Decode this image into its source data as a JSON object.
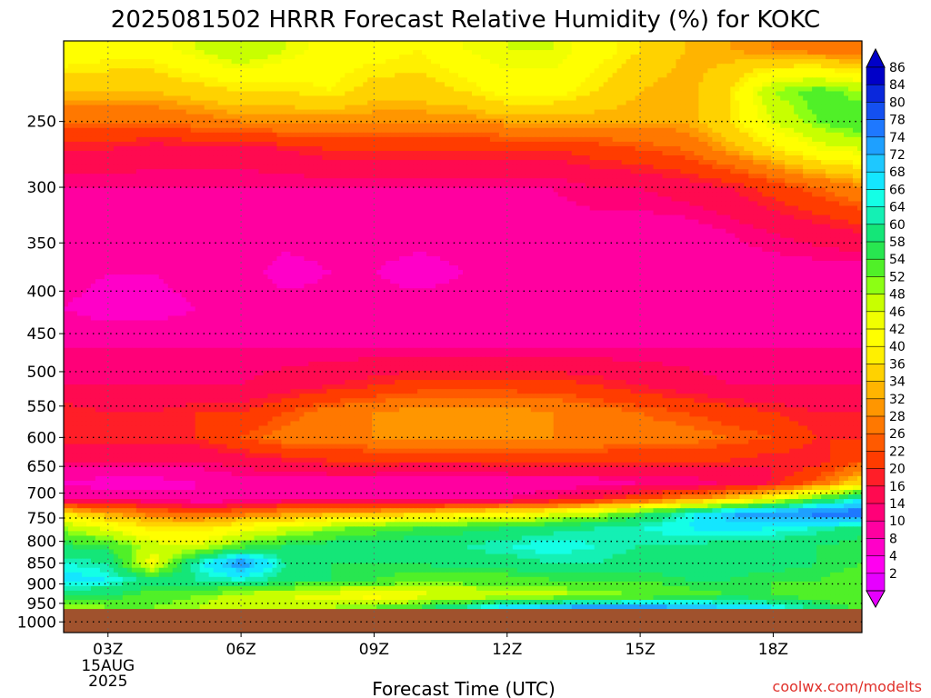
{
  "chart_data": {
    "type": "heatmap",
    "title": "2025081502 HRRR Forecast Relative Humidity (%) for KOKC",
    "xlabel": "Forecast Time (UTC)",
    "ylabel": "",
    "x_ticks": [
      "03Z",
      "06Z",
      "09Z",
      "12Z",
      "15Z",
      "18Z"
    ],
    "x_tick_values": [
      3,
      6,
      9,
      12,
      15,
      18
    ],
    "x_first_sub": [
      "15AUG",
      "2025"
    ],
    "xlim": [
      2,
      20
    ],
    "y_ticks": [
      250,
      300,
      350,
      400,
      450,
      500,
      550,
      600,
      650,
      700,
      750,
      800,
      850,
      900,
      950,
      1000
    ],
    "ylim": [
      200,
      1030
    ],
    "y_scale": "log-pressure",
    "grid": true,
    "ground_pressure": 965,
    "colorbar_labels": [
      86,
      84,
      80,
      78,
      74,
      72,
      68,
      66,
      64,
      60,
      58,
      54,
      52,
      48,
      46,
      42,
      40,
      36,
      34,
      32,
      28,
      26,
      22,
      20,
      16,
      14,
      10,
      8,
      4,
      2
    ],
    "colorbar_colors": [
      "#0000c8",
      "#0a28dc",
      "#1450f0",
      "#1e78ff",
      "#1ea0ff",
      "#1ec8ff",
      "#14e6ff",
      "#14ffe6",
      "#14f0b4",
      "#14e678",
      "#28e650",
      "#50f028",
      "#8cff14",
      "#c8ff00",
      "#f0ff00",
      "#ffff00",
      "#fff000",
      "#ffd200",
      "#ffb400",
      "#ff9600",
      "#ff7800",
      "#ff5a00",
      "#ff3c00",
      "#ff1e28",
      "#ff0a50",
      "#ff0078",
      "#ff00a0",
      "#ff00c8",
      "#ff00f0",
      "#e600ff"
    ],
    "series_levels": [
      {
        "p": 205,
        "values": [
          46,
          44,
          44,
          48,
          52,
          48,
          44,
          44,
          42,
          46,
          48,
          48,
          44,
          40,
          36,
          34,
          32,
          30,
          28
        ]
      },
      {
        "p": 230,
        "values": [
          36,
          36,
          36,
          38,
          40,
          40,
          42,
          38,
          38,
          40,
          44,
          44,
          40,
          36,
          34,
          40,
          52,
          56,
          52
        ]
      },
      {
        "p": 250,
        "values": [
          28,
          28,
          28,
          30,
          32,
          32,
          32,
          32,
          32,
          32,
          34,
          34,
          34,
          34,
          34,
          40,
          48,
          54,
          58
        ]
      },
      {
        "p": 270,
        "values": [
          20,
          20,
          18,
          18,
          18,
          20,
          22,
          22,
          22,
          22,
          22,
          22,
          24,
          26,
          28,
          34,
          40,
          46,
          48
        ]
      },
      {
        "p": 300,
        "values": [
          14,
          14,
          14,
          14,
          14,
          14,
          14,
          14,
          14,
          14,
          14,
          14,
          16,
          16,
          18,
          20,
          24,
          28,
          32
        ]
      },
      {
        "p": 340,
        "values": [
          12,
          12,
          12,
          12,
          12,
          12,
          12,
          12,
          12,
          12,
          12,
          12,
          12,
          12,
          12,
          14,
          16,
          18,
          20
        ]
      },
      {
        "p": 380,
        "values": [
          12,
          10,
          10,
          12,
          12,
          8,
          10,
          10,
          8,
          10,
          10,
          10,
          10,
          10,
          12,
          12,
          12,
          12,
          12
        ]
      },
      {
        "p": 420,
        "values": [
          10,
          8,
          8,
          10,
          12,
          12,
          12,
          12,
          12,
          12,
          12,
          12,
          12,
          12,
          12,
          12,
          12,
          10,
          10
        ]
      },
      {
        "p": 470,
        "values": [
          14,
          14,
          14,
          14,
          14,
          14,
          14,
          14,
          14,
          14,
          14,
          14,
          14,
          14,
          14,
          14,
          14,
          14,
          14
        ]
      },
      {
        "p": 520,
        "values": [
          16,
          16,
          16,
          16,
          16,
          18,
          20,
          22,
          24,
          24,
          24,
          24,
          22,
          20,
          18,
          16,
          16,
          16,
          16
        ]
      },
      {
        "p": 560,
        "values": [
          22,
          20,
          20,
          22,
          22,
          26,
          30,
          32,
          34,
          34,
          34,
          32,
          30,
          28,
          26,
          24,
          22,
          20,
          20
        ]
      },
      {
        "p": 600,
        "values": [
          22,
          22,
          22,
          22,
          26,
          30,
          30,
          32,
          32,
          32,
          32,
          32,
          32,
          30,
          30,
          28,
          26,
          22,
          22
        ]
      },
      {
        "p": 640,
        "values": [
          16,
          16,
          16,
          16,
          18,
          20,
          22,
          22,
          22,
          22,
          22,
          22,
          22,
          22,
          22,
          22,
          20,
          20,
          26
        ]
      },
      {
        "p": 680,
        "values": [
          10,
          8,
          8,
          10,
          12,
          12,
          12,
          12,
          10,
          10,
          12,
          12,
          12,
          14,
          14,
          16,
          20,
          28,
          40
        ]
      },
      {
        "p": 710,
        "values": [
          14,
          12,
          12,
          10,
          10,
          12,
          12,
          12,
          12,
          12,
          14,
          16,
          20,
          24,
          30,
          36,
          44,
          56,
          66
        ]
      },
      {
        "p": 740,
        "values": [
          40,
          34,
          30,
          28,
          30,
          32,
          34,
          36,
          38,
          40,
          42,
          46,
          50,
          58,
          66,
          74,
          78,
          80,
          82
        ]
      },
      {
        "p": 770,
        "values": [
          52,
          46,
          40,
          40,
          44,
          48,
          52,
          56,
          58,
          58,
          60,
          62,
          64,
          66,
          68,
          70,
          68,
          66,
          62
        ]
      },
      {
        "p": 810,
        "values": [
          60,
          58,
          50,
          48,
          56,
          60,
          62,
          62,
          62,
          64,
          66,
          68,
          66,
          64,
          64,
          62,
          62,
          60,
          58
        ]
      },
      {
        "p": 850,
        "values": [
          66,
          64,
          44,
          66,
          78,
          64,
          60,
          60,
          60,
          62,
          62,
          64,
          64,
          62,
          62,
          62,
          62,
          60,
          58
        ]
      },
      {
        "p": 890,
        "values": [
          70,
          68,
          62,
          64,
          66,
          62,
          60,
          58,
          56,
          56,
          56,
          58,
          58,
          58,
          60,
          60,
          58,
          58,
          56
        ]
      },
      {
        "p": 930,
        "values": [
          60,
          60,
          56,
          54,
          50,
          48,
          46,
          44,
          46,
          48,
          50,
          50,
          52,
          54,
          56,
          58,
          58,
          56,
          54
        ]
      },
      {
        "p": 960,
        "values": [
          52,
          54,
          54,
          52,
          50,
          50,
          52,
          54,
          58,
          64,
          70,
          74,
          76,
          76,
          74,
          72,
          68,
          62,
          56
        ]
      }
    ]
  },
  "credit": "coolwx.com/modelts"
}
